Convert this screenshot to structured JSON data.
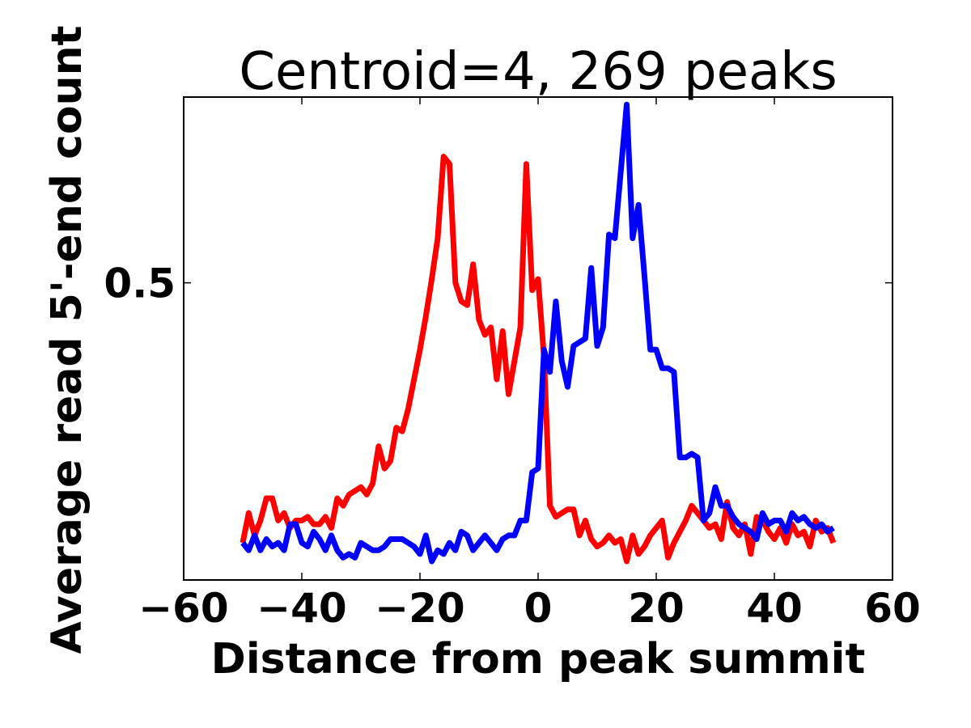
{
  "chart_data": {
    "type": "line",
    "title": "Centroid=4, 269 peaks",
    "xlabel": "Distance from peak summit",
    "ylabel": "Average read 5'-end count",
    "xlim": [
      -60,
      60
    ],
    "ylim": [
      0.1,
      0.75
    ],
    "xticks": [
      -60,
      -40,
      -20,
      0,
      20,
      40,
      60
    ],
    "xtick_labels": [
      "−60",
      "−40",
      "−20",
      "0",
      "20",
      "40",
      "60"
    ],
    "yticks": [
      0.5
    ],
    "ytick_labels": [
      "0.5"
    ],
    "grid": false,
    "legend": "none",
    "x": [
      -50,
      -49,
      -48,
      -47,
      -46,
      -45,
      -44,
      -43,
      -42,
      -41,
      -40,
      -39,
      -38,
      -37,
      -36,
      -35,
      -34,
      -33,
      -32,
      -31,
      -30,
      -29,
      -28,
      -27,
      -26,
      -25,
      -24,
      -23,
      -22,
      -21,
      -20,
      -19,
      -18,
      -17,
      -16,
      -15,
      -14,
      -13,
      -12,
      -11,
      -10,
      -9,
      -8,
      -7,
      -6,
      -5,
      -4,
      -3,
      -2,
      -1,
      0,
      1,
      2,
      3,
      4,
      5,
      6,
      7,
      8,
      9,
      10,
      11,
      12,
      13,
      14,
      15,
      16,
      17,
      18,
      19,
      20,
      21,
      22,
      23,
      24,
      25,
      26,
      27,
      28,
      29,
      30,
      31,
      32,
      33,
      34,
      35,
      36,
      37,
      38,
      39,
      40,
      41,
      42,
      43,
      44,
      45,
      46,
      47,
      48,
      49,
      50
    ],
    "series": [
      {
        "color": "#ff0000",
        "values": [
          0.15,
          0.19,
          0.16,
          0.18,
          0.21,
          0.21,
          0.18,
          0.19,
          0.17,
          0.18,
          0.18,
          0.185,
          0.175,
          0.175,
          0.185,
          0.17,
          0.21,
          0.2,
          0.215,
          0.22,
          0.225,
          0.215,
          0.23,
          0.28,
          0.25,
          0.26,
          0.305,
          0.3,
          0.33,
          0.37,
          0.41,
          0.455,
          0.505,
          0.56,
          0.67,
          0.66,
          0.5,
          0.475,
          0.47,
          0.525,
          0.45,
          0.43,
          0.44,
          0.37,
          0.435,
          0.35,
          0.395,
          0.44,
          0.66,
          0.49,
          0.505,
          0.4,
          0.2,
          0.185,
          0.19,
          0.195,
          0.195,
          0.16,
          0.18,
          0.155,
          0.145,
          0.15,
          0.16,
          0.15,
          0.155,
          0.125,
          0.16,
          0.135,
          0.145,
          0.16,
          0.17,
          0.18,
          0.13,
          0.15,
          0.165,
          0.18,
          0.2,
          0.19,
          0.18,
          0.17,
          0.175,
          0.155,
          0.205,
          0.17,
          0.16,
          0.175,
          0.135,
          0.185,
          0.18,
          0.165,
          0.155,
          0.17,
          0.15,
          0.175,
          0.16,
          0.165,
          0.145,
          0.18,
          0.165,
          0.17,
          0.15
        ]
      },
      {
        "color": "#0000ff",
        "values": [
          0.15,
          0.14,
          0.16,
          0.14,
          0.155,
          0.145,
          0.15,
          0.14,
          0.175,
          0.175,
          0.15,
          0.145,
          0.165,
          0.155,
          0.14,
          0.16,
          0.14,
          0.13,
          0.135,
          0.13,
          0.15,
          0.145,
          0.14,
          0.14,
          0.145,
          0.155,
          0.155,
          0.155,
          0.15,
          0.145,
          0.135,
          0.16,
          0.125,
          0.14,
          0.135,
          0.15,
          0.14,
          0.165,
          0.16,
          0.14,
          0.15,
          0.16,
          0.15,
          0.14,
          0.155,
          0.16,
          0.16,
          0.18,
          0.18,
          0.245,
          0.25,
          0.41,
          0.38,
          0.475,
          0.395,
          0.36,
          0.415,
          0.42,
          0.425,
          0.52,
          0.415,
          0.44,
          0.565,
          0.56,
          0.65,
          0.74,
          0.56,
          0.605,
          0.51,
          0.41,
          0.41,
          0.385,
          0.385,
          0.38,
          0.265,
          0.265,
          0.27,
          0.265,
          0.18,
          0.19,
          0.225,
          0.2,
          0.2,
          0.185,
          0.175,
          0.17,
          0.165,
          0.155,
          0.19,
          0.175,
          0.18,
          0.18,
          0.165,
          0.19,
          0.18,
          0.185,
          0.175,
          0.17,
          0.175,
          0.165,
          0.17
        ]
      }
    ]
  }
}
